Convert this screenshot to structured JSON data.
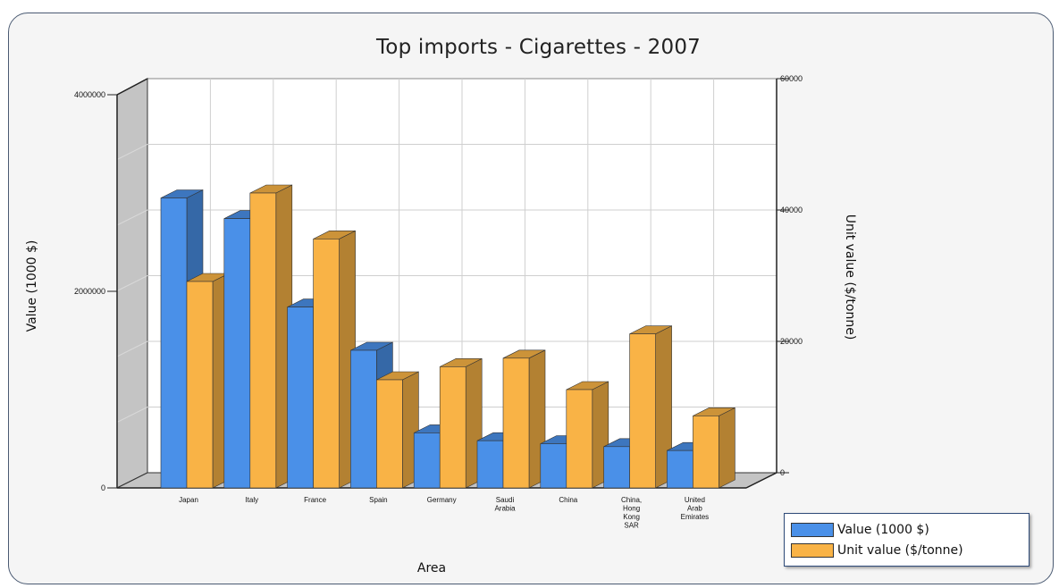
{
  "chart_data": {
    "type": "bar",
    "title": "Top imports - Cigarettes - 2007",
    "xlabel": "Area",
    "ylabel": "Value (1000 $)",
    "y2label": "Unit value ($/tonne)",
    "categories": [
      "Japan",
      "Italy",
      "France",
      "Spain",
      "Germany",
      "Saudi Arabia",
      "China",
      "China, Hong Kong SAR",
      "United Arab Emirates"
    ],
    "category_tick_labels": [
      [
        "Japan"
      ],
      [
        "Italy"
      ],
      [
        "France"
      ],
      [
        "Spain"
      ],
      [
        "Germany"
      ],
      [
        "Saudi",
        "Arabia"
      ],
      [
        "China"
      ],
      [
        "China,",
        "Hong",
        "Kong",
        "SAR"
      ],
      [
        "United",
        "Arab",
        "Emirates"
      ]
    ],
    "ylim": [
      0,
      4000000
    ],
    "y2lim": [
      0,
      60000
    ],
    "yticks": [
      "0",
      "2000000",
      "4000000"
    ],
    "y2ticks": [
      "0",
      "20000",
      "40000",
      "60000"
    ],
    "series": [
      {
        "name": "Value (1000 $)",
        "axis": "left",
        "color": "#4a90e8",
        "values": [
          2950000,
          2740000,
          1840000,
          1400000,
          560000,
          480000,
          450000,
          420000,
          380000
        ]
      },
      {
        "name": "Unit value ($/tonne)",
        "axis": "right",
        "color": "#f9b346",
        "values": [
          31500,
          45000,
          38000,
          16500,
          18500,
          19800,
          15000,
          23500,
          11000
        ]
      }
    ],
    "grid": true,
    "legend_position": "bottom-right",
    "three_d": true
  }
}
